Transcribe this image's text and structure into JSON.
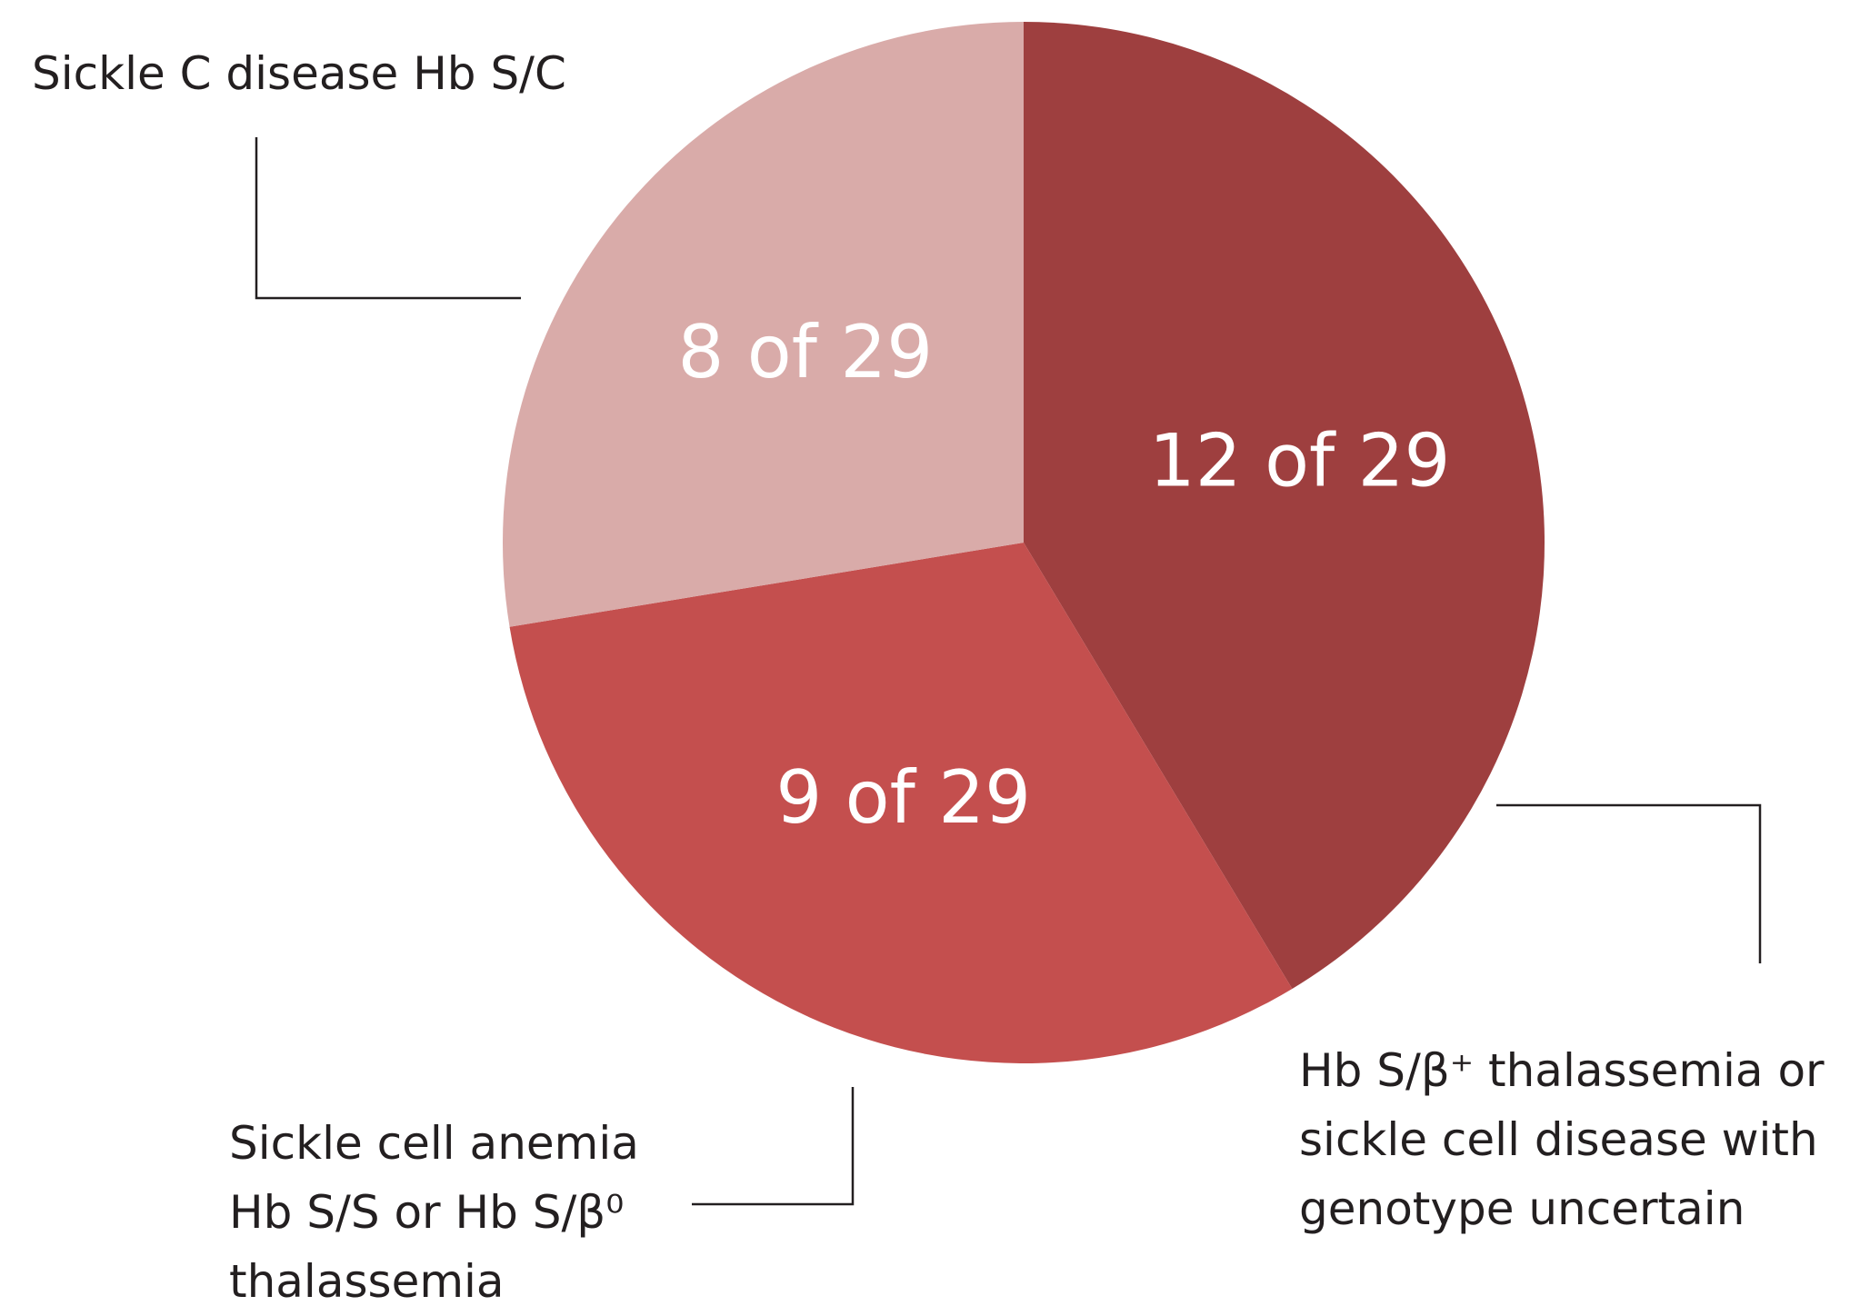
{
  "chart_data": {
    "type": "pie",
    "categories": [
      "Hb S/β⁺ thalassemia or\nsickle cell disease with\ngenotype uncertain",
      "Sickle cell anemia\nHb S/S or Hb S/β⁰\nthalassemia",
      "Sickle C disease Hb S/C"
    ],
    "values": [
      12,
      9,
      8
    ],
    "value_labels": [
      "12 of 29",
      "9 of 29",
      "8 of 29"
    ],
    "colors": [
      "#9e3f3f",
      "#c44f4e",
      "#d9aba9"
    ]
  }
}
